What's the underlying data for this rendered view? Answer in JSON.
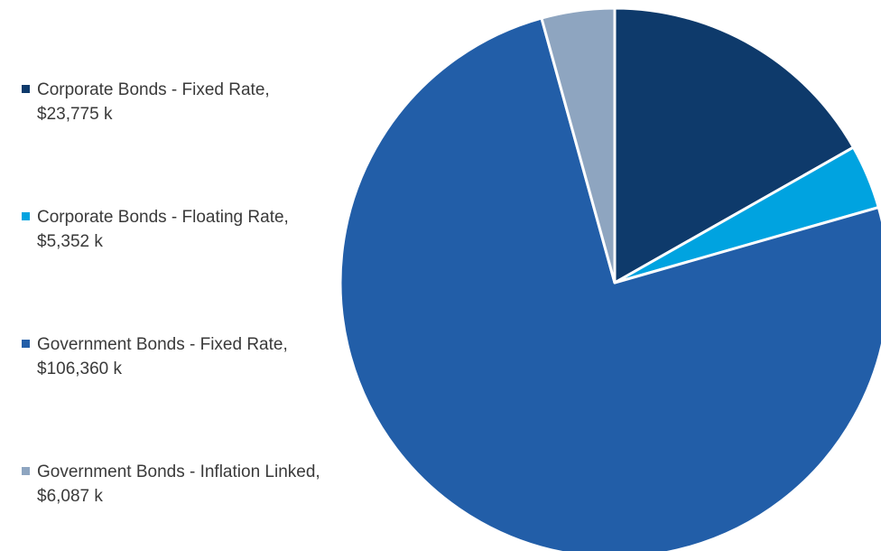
{
  "chart_data": {
    "type": "pie",
    "title": "",
    "slices": [
      {
        "label": "Corporate Bonds - Fixed Rate, $23,775 k",
        "value": 23775,
        "color": "#0e3a6b"
      },
      {
        "label": "Corporate Bonds - Floating Rate, $5,352 k",
        "value": 5352,
        "color": "#00a3e0"
      },
      {
        "label": "Government Bonds - Fixed Rate, $106,360 k",
        "value": 106360,
        "color": "#225ea8"
      },
      {
        "label": "Government Bonds - Inflation Linked, $6,087 k",
        "value": 6087,
        "color": "#8ea5c0"
      }
    ],
    "start": "12 o'clock",
    "direction": "clockwise",
    "legend_position": "left"
  }
}
